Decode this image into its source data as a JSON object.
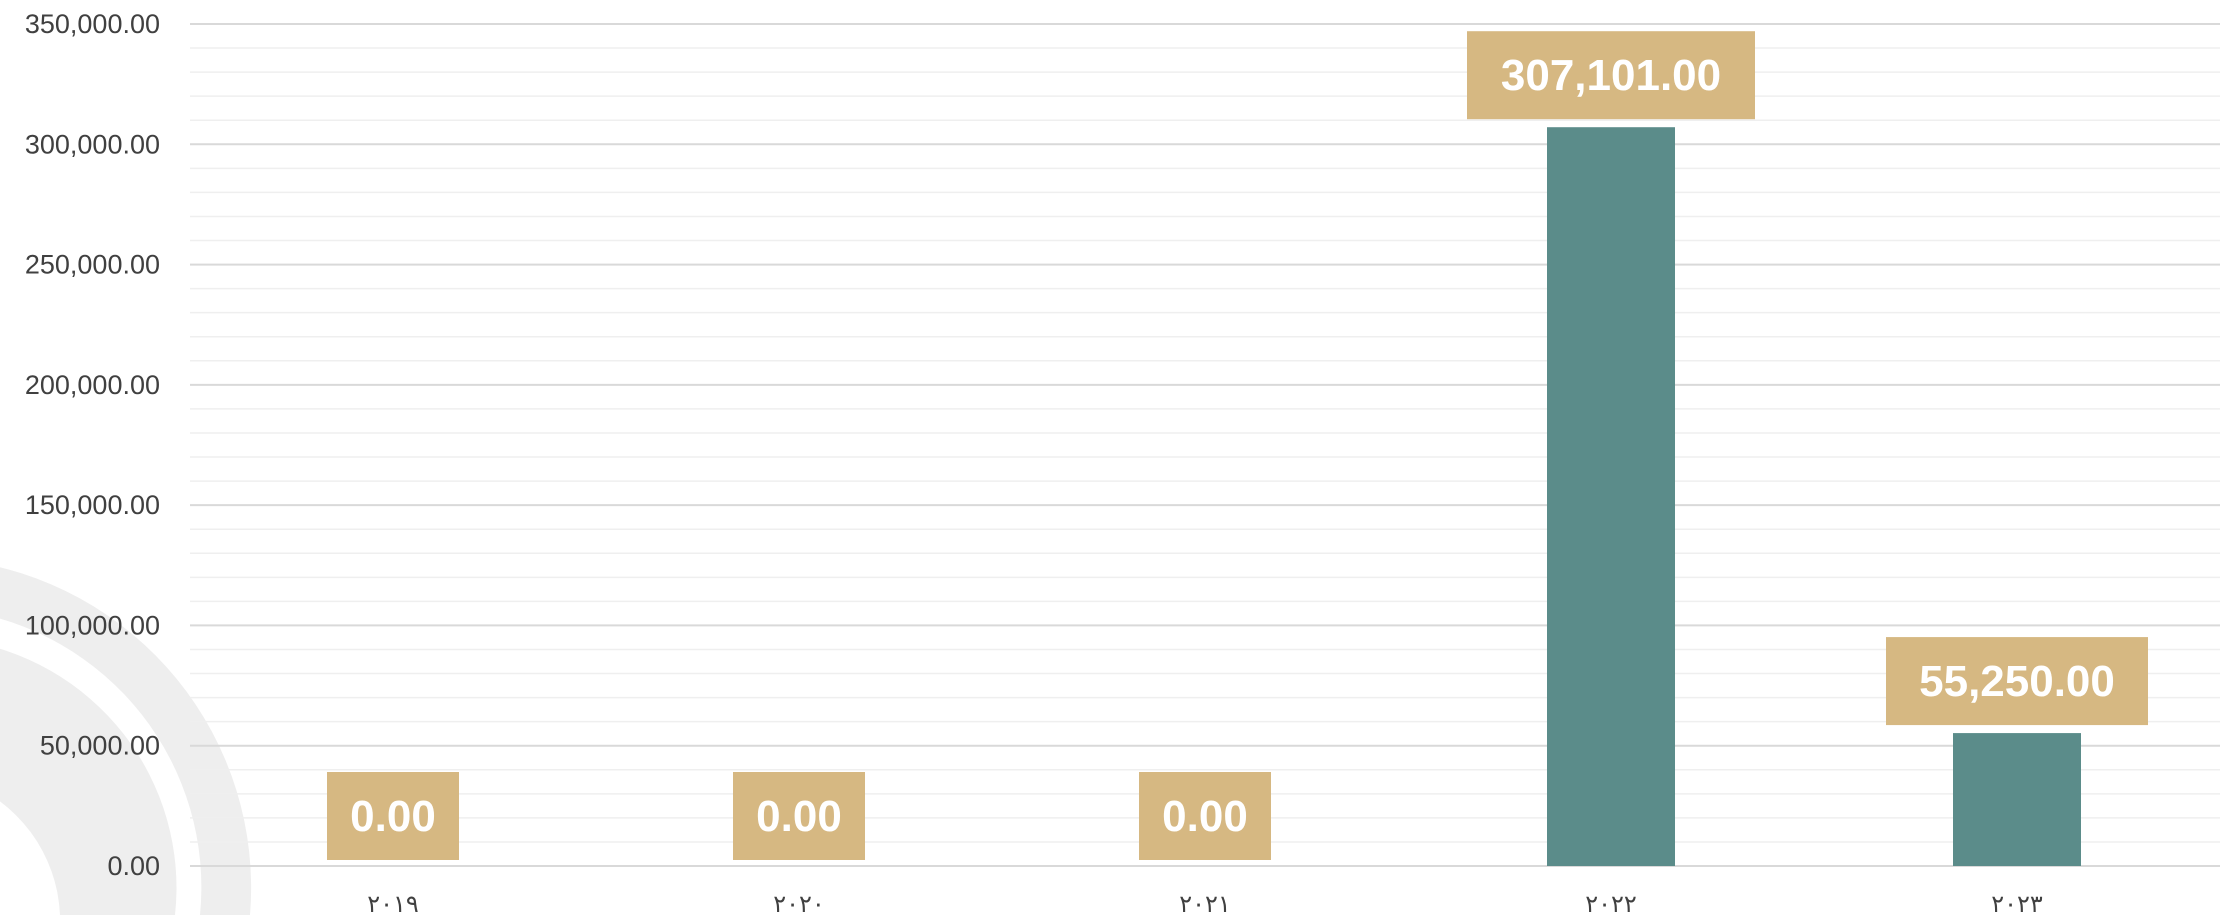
{
  "colors": {
    "bar": "#5b8c8a",
    "label_box": "#d6b882",
    "label_text": "#ffffff",
    "major_grid": "#d9d9d9",
    "minor_grid": "#efefef",
    "watermark": "#eeeeee"
  },
  "chart_data": {
    "type": "bar",
    "title": "",
    "xlabel": "",
    "ylabel": "",
    "categories": [
      "٢٠١٩",
      "٢٠٢٠",
      "٢٠٢١",
      "٢٠٢٢",
      "٢٠٢٣"
    ],
    "values": [
      0,
      0,
      0,
      307101,
      55250
    ],
    "data_labels": [
      "0.00",
      "0.00",
      "0.00",
      "307,101.00",
      "55,250.00"
    ],
    "ylim": [
      0,
      350000
    ],
    "yticks": [
      0,
      50000,
      100000,
      150000,
      200000,
      250000,
      300000,
      350000
    ],
    "ytick_labels": [
      "0.00",
      "50,000.00",
      "100,000.00",
      "150,000.00",
      "200,000.00",
      "250,000.00",
      "300,000.00",
      "350,000.00"
    ],
    "minor_ticks_per_major": 5,
    "grid": true,
    "legend": "none"
  }
}
